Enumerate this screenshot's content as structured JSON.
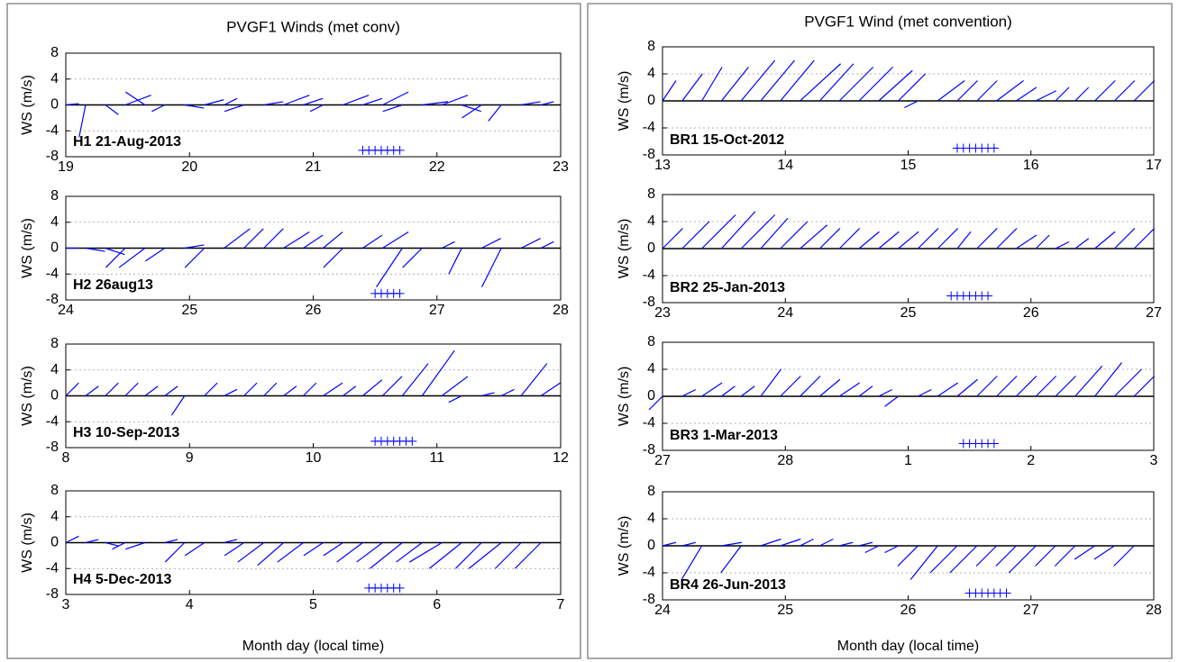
{
  "chart_data": [
    {
      "type": "stick",
      "title": "PVGF1 Winds (met conv)",
      "xlabel": "Month day (local time)",
      "color": "#0000ff",
      "grid": true,
      "panels": [
        {
          "label": "H1 21-Aug-2013",
          "ylabel": "WS (m/s)",
          "xlim": [
            19,
            23
          ],
          "xticks": [
            19,
            20,
            21,
            22,
            23
          ],
          "ylim": [
            -8,
            8
          ],
          "yticks": [
            -8,
            -4,
            0,
            4,
            8
          ],
          "x": [
            19.0,
            19.16,
            19.32,
            19.48,
            19.64,
            19.8,
            19.96,
            20.12,
            20.28,
            20.44,
            20.6,
            20.76,
            20.92,
            21.08,
            21.24,
            21.4,
            21.56,
            21.72,
            21.88,
            22.04,
            22.2,
            22.36,
            22.52,
            22.68,
            22.84
          ],
          "u": [
            2,
            -1,
            2,
            4,
            -3,
            -2,
            3,
            3,
            2,
            -3,
            3,
            4,
            3,
            -2,
            4,
            3,
            4,
            -3,
            4,
            4,
            3,
            -3,
            -2,
            3,
            2
          ],
          "v": [
            0.2,
            -5,
            -1.5,
            1.5,
            2,
            -1,
            -0.5,
            0.8,
            1,
            -1,
            0.5,
            1.5,
            1,
            -1,
            1.5,
            1,
            2,
            -1,
            0.5,
            1.5,
            -1,
            -2,
            -2.5,
            0.5,
            0.5
          ],
          "markers": {
            "x": [
              21.4,
              21.45,
              21.5,
              21.55,
              21.6,
              21.65,
              21.7
            ],
            "y": [
              -7,
              -7,
              -7,
              -7,
              -7,
              -7,
              -7
            ]
          }
        },
        {
          "label": "H2 26aug13",
          "ylabel": "WS (m/s)",
          "xlim": [
            24,
            28
          ],
          "xticks": [
            24,
            25,
            26,
            27,
            28
          ],
          "ylim": [
            -8,
            8
          ],
          "yticks": [
            -8,
            -4,
            0,
            4,
            8
          ],
          "x": [
            24.0,
            24.16,
            24.32,
            24.48,
            24.64,
            24.8,
            24.96,
            25.12,
            25.28,
            25.44,
            25.6,
            25.76,
            25.92,
            26.08,
            26.24,
            26.4,
            26.56,
            26.72,
            26.88,
            27.04,
            27.2,
            27.36,
            27.52,
            27.68,
            27.84
          ],
          "u": [
            2,
            3,
            3,
            -3,
            -4,
            -3,
            3,
            -3,
            4,
            3,
            3,
            4,
            3,
            3,
            -3,
            3,
            4,
            -4,
            -3,
            2,
            -2,
            3,
            -3,
            3,
            2
          ],
          "v": [
            0,
            -0.5,
            -1,
            -3,
            -3,
            -2,
            0.5,
            -3,
            3,
            3,
            3,
            2.5,
            2,
            2.5,
            -3,
            2,
            2.5,
            -6,
            -3,
            1,
            -4,
            1.5,
            -6,
            1.5,
            1
          ],
          "markers": {
            "x": [
              26.5,
              26.55,
              26.6,
              26.65,
              26.7
            ],
            "y": [
              -7,
              -7,
              -7,
              -7,
              -7
            ]
          }
        },
        {
          "label": "H3 10-Sep-2013",
          "ylabel": "WS (m/s)",
          "xlim": [
            8,
            12
          ],
          "xticks": [
            8,
            9,
            10,
            11,
            12
          ],
          "ylim": [
            -8,
            8
          ],
          "yticks": [
            -8,
            -4,
            0,
            4,
            8
          ],
          "x": [
            8.0,
            8.16,
            8.32,
            8.48,
            8.64,
            8.8,
            8.96,
            9.12,
            9.28,
            9.44,
            9.6,
            9.76,
            9.92,
            10.08,
            10.24,
            10.4,
            10.56,
            10.72,
            10.88,
            11.04,
            11.2,
            11.36,
            11.52,
            11.68,
            11.84
          ],
          "u": [
            2,
            2,
            2,
            2,
            2,
            2,
            -2,
            2,
            2,
            2,
            2,
            2,
            2,
            3,
            2,
            3,
            3,
            4,
            5,
            4,
            -2,
            2,
            2,
            4,
            3
          ],
          "v": [
            2,
            1.5,
            2,
            2,
            1.5,
            1.5,
            -3,
            2,
            1,
            2,
            2,
            1.5,
            2,
            2,
            1.5,
            2.5,
            3,
            5,
            7,
            3,
            -1,
            0.5,
            1,
            5,
            2
          ],
          "markers": {
            "x": [
              10.5,
              10.55,
              10.6,
              10.65,
              10.7,
              10.75,
              10.8
            ],
            "y": [
              -7,
              -7,
              -7,
              -7,
              -7,
              -7,
              -7
            ]
          }
        },
        {
          "label": "H4 5-Dec-2013",
          "ylabel": "WS (m/s)",
          "xlim": [
            3,
            7
          ],
          "xticks": [
            3,
            4,
            5,
            6,
            7
          ],
          "ylim": [
            -8,
            8
          ],
          "yticks": [
            -8,
            -4,
            0,
            4,
            8
          ],
          "x": [
            3.0,
            3.16,
            3.32,
            3.48,
            3.64,
            3.8,
            3.96,
            4.12,
            4.28,
            4.44,
            4.6,
            4.76,
            4.92,
            5.08,
            5.24,
            5.4,
            5.56,
            5.72,
            5.88,
            6.04,
            6.2,
            6.36,
            6.52,
            6.68,
            6.84
          ],
          "u": [
            2,
            2,
            2,
            -2,
            -3,
            2,
            -3,
            -3,
            2,
            -3,
            -4,
            -4,
            -4,
            -3,
            -3,
            -4,
            -4,
            -5,
            -4,
            -5,
            -5,
            -4,
            -5,
            -4,
            -4
          ],
          "v": [
            1,
            0.5,
            -0.5,
            -1,
            -1,
            0.5,
            -3,
            -2,
            0.5,
            -2,
            -3,
            -3.5,
            -3,
            -2,
            -2,
            -3,
            -3,
            -4,
            -3,
            -3,
            -4,
            -4,
            -4,
            -4,
            -4
          ],
          "markers": {
            "x": [
              5.45,
              5.5,
              5.55,
              5.6,
              5.65,
              5.7
            ],
            "y": [
              -7,
              -7,
              -7,
              -7,
              -7,
              -7
            ]
          }
        }
      ]
    },
    {
      "type": "stick",
      "title": "PVGF1 Wind (met convention)",
      "xlabel": "Month day (local time)",
      "color": "#0000ff",
      "grid": true,
      "panels": [
        {
          "label": "BR1 15-Oct-2012",
          "ylabel": "WS (m/s)",
          "xlim": [
            13,
            17
          ],
          "xticks": [
            13,
            14,
            15,
            16,
            17
          ],
          "ylim": [
            -8,
            8
          ],
          "yticks": [
            -8,
            -4,
            0,
            4,
            8
          ],
          "x": [
            13.0,
            13.16,
            13.32,
            13.48,
            13.64,
            13.8,
            13.96,
            14.12,
            14.28,
            14.44,
            14.6,
            14.76,
            14.92,
            15.08,
            15.24,
            15.4,
            15.56,
            15.72,
            15.88,
            16.04,
            16.2,
            16.36,
            16.52,
            16.68,
            16.84
          ],
          "u": [
            2,
            3,
            3,
            4,
            5,
            5,
            5,
            6,
            5,
            5,
            5,
            5,
            4,
            -2,
            4,
            3,
            3,
            4,
            3,
            3,
            2,
            2,
            3,
            3,
            3
          ],
          "v": [
            3,
            4,
            5,
            5,
            6,
            6,
            6,
            5.5,
            5.5,
            5,
            5,
            4.5,
            4,
            -1,
            3,
            3,
            3,
            3,
            2,
            1.5,
            2,
            2,
            3,
            3,
            3
          ],
          "markers": {
            "x": [
              15.4,
              15.45,
              15.5,
              15.55,
              15.6,
              15.65,
              15.7
            ],
            "y": [
              -7,
              -7,
              -7,
              -7,
              -7,
              -7,
              -7
            ]
          }
        },
        {
          "label": "BR2 25-Jan-2013",
          "ylabel": "WS (m/s)",
          "xlim": [
            23,
            27
          ],
          "xticks": [
            23,
            24,
            25,
            26,
            27
          ],
          "ylim": [
            -8,
            8
          ],
          "yticks": [
            -8,
            -4,
            0,
            4,
            8
          ],
          "x": [
            23.0,
            23.16,
            23.32,
            23.48,
            23.64,
            23.8,
            23.96,
            24.12,
            24.28,
            24.44,
            24.6,
            24.76,
            24.92,
            25.08,
            25.24,
            25.4,
            25.56,
            25.72,
            25.88,
            26.04,
            26.2,
            26.36,
            26.52,
            26.68,
            26.84
          ],
          "u": [
            3,
            4,
            5,
            5,
            5,
            4,
            4,
            4,
            3,
            3,
            3,
            3,
            3,
            3,
            3,
            2,
            3,
            3,
            3,
            2,
            2,
            2,
            3,
            3,
            3
          ],
          "v": [
            3,
            4,
            5,
            5.5,
            5,
            4.5,
            4,
            3.5,
            3,
            3,
            2.5,
            2.5,
            2.5,
            3,
            3,
            2.5,
            3,
            3,
            2,
            2,
            1,
            1.5,
            2.5,
            3,
            3
          ],
          "markers": {
            "x": [
              25.35,
              25.4,
              25.45,
              25.5,
              25.55,
              25.6,
              25.65
            ],
            "y": [
              -7,
              -7,
              -7,
              -7,
              -7,
              -7,
              -7
            ]
          }
        },
        {
          "label": "BR3 1-Mar-2013",
          "ylabel": "WS (m/s)",
          "xlim": [
            27,
            31
          ],
          "xticks": [
            27,
            28,
            {
              "value": 29,
              "label": "1"
            },
            {
              "value": 30,
              "label": "2"
            },
            {
              "value": 31,
              "label": "3"
            }
          ],
          "ylim": [
            -8,
            8
          ],
          "yticks": [
            -8,
            -4,
            0,
            4,
            8
          ],
          "x": [
            27.0,
            27.16,
            27.32,
            27.48,
            27.64,
            27.8,
            27.96,
            28.12,
            28.28,
            28.44,
            28.6,
            28.76,
            28.92,
            29.08,
            29.24,
            29.4,
            29.56,
            29.72,
            29.88,
            30.04,
            30.2,
            30.36,
            30.52,
            30.68,
            30.84
          ],
          "u": [
            -2,
            2,
            3,
            2,
            2,
            3,
            3,
            3,
            3,
            3,
            2,
            2,
            -2,
            2,
            3,
            3,
            3,
            3,
            3,
            3,
            3,
            4,
            4,
            4,
            3
          ],
          "v": [
            -2,
            1,
            2,
            1.5,
            1.5,
            4,
            3,
            3,
            2.5,
            2,
            1.5,
            1,
            -1.5,
            1,
            2,
            2.5,
            3,
            3,
            3,
            3,
            3,
            4.5,
            5,
            4,
            3
          ],
          "markers": {
            "x": [
              29.45,
              29.5,
              29.55,
              29.6,
              29.65,
              29.7
            ],
            "y": [
              -7,
              -7,
              -7,
              -7,
              -7,
              -7
            ]
          }
        },
        {
          "label": "BR4 26-Jun-2013",
          "ylabel": "WS (m/s)",
          "xlim": [
            24,
            28
          ],
          "xticks": [
            24,
            25,
            26,
            27,
            28
          ],
          "ylim": [
            -8,
            8
          ],
          "yticks": [
            -8,
            -4,
            0,
            4,
            8
          ],
          "x": [
            24.0,
            24.16,
            24.32,
            24.48,
            24.64,
            24.8,
            24.96,
            25.12,
            25.28,
            25.44,
            25.6,
            25.76,
            25.92,
            26.08,
            26.24,
            26.4,
            26.56,
            26.72,
            26.88,
            27.04,
            27.2,
            27.36,
            27.52,
            27.68,
            27.84
          ],
          "u": [
            2,
            2,
            -3,
            3,
            -3,
            3,
            3,
            2,
            2,
            2,
            2,
            -2,
            -2,
            -3,
            -4,
            -4,
            -4,
            -3,
            -3,
            -4,
            -3,
            -3,
            -3,
            -3,
            -3
          ],
          "v": [
            0.5,
            0.5,
            -5,
            0.5,
            -4,
            1,
            1,
            1,
            1,
            0.5,
            0.5,
            -1,
            -1,
            -3,
            -5,
            -4,
            -4,
            -3,
            -3,
            -4,
            -3,
            -3,
            -2,
            -2,
            -3
          ],
          "markers": {
            "x": [
              26.5,
              26.55,
              26.6,
              26.65,
              26.7,
              26.75,
              26.8
            ],
            "y": [
              -7,
              -7,
              -7,
              -7,
              -7,
              -7,
              -7
            ]
          }
        }
      ]
    }
  ]
}
